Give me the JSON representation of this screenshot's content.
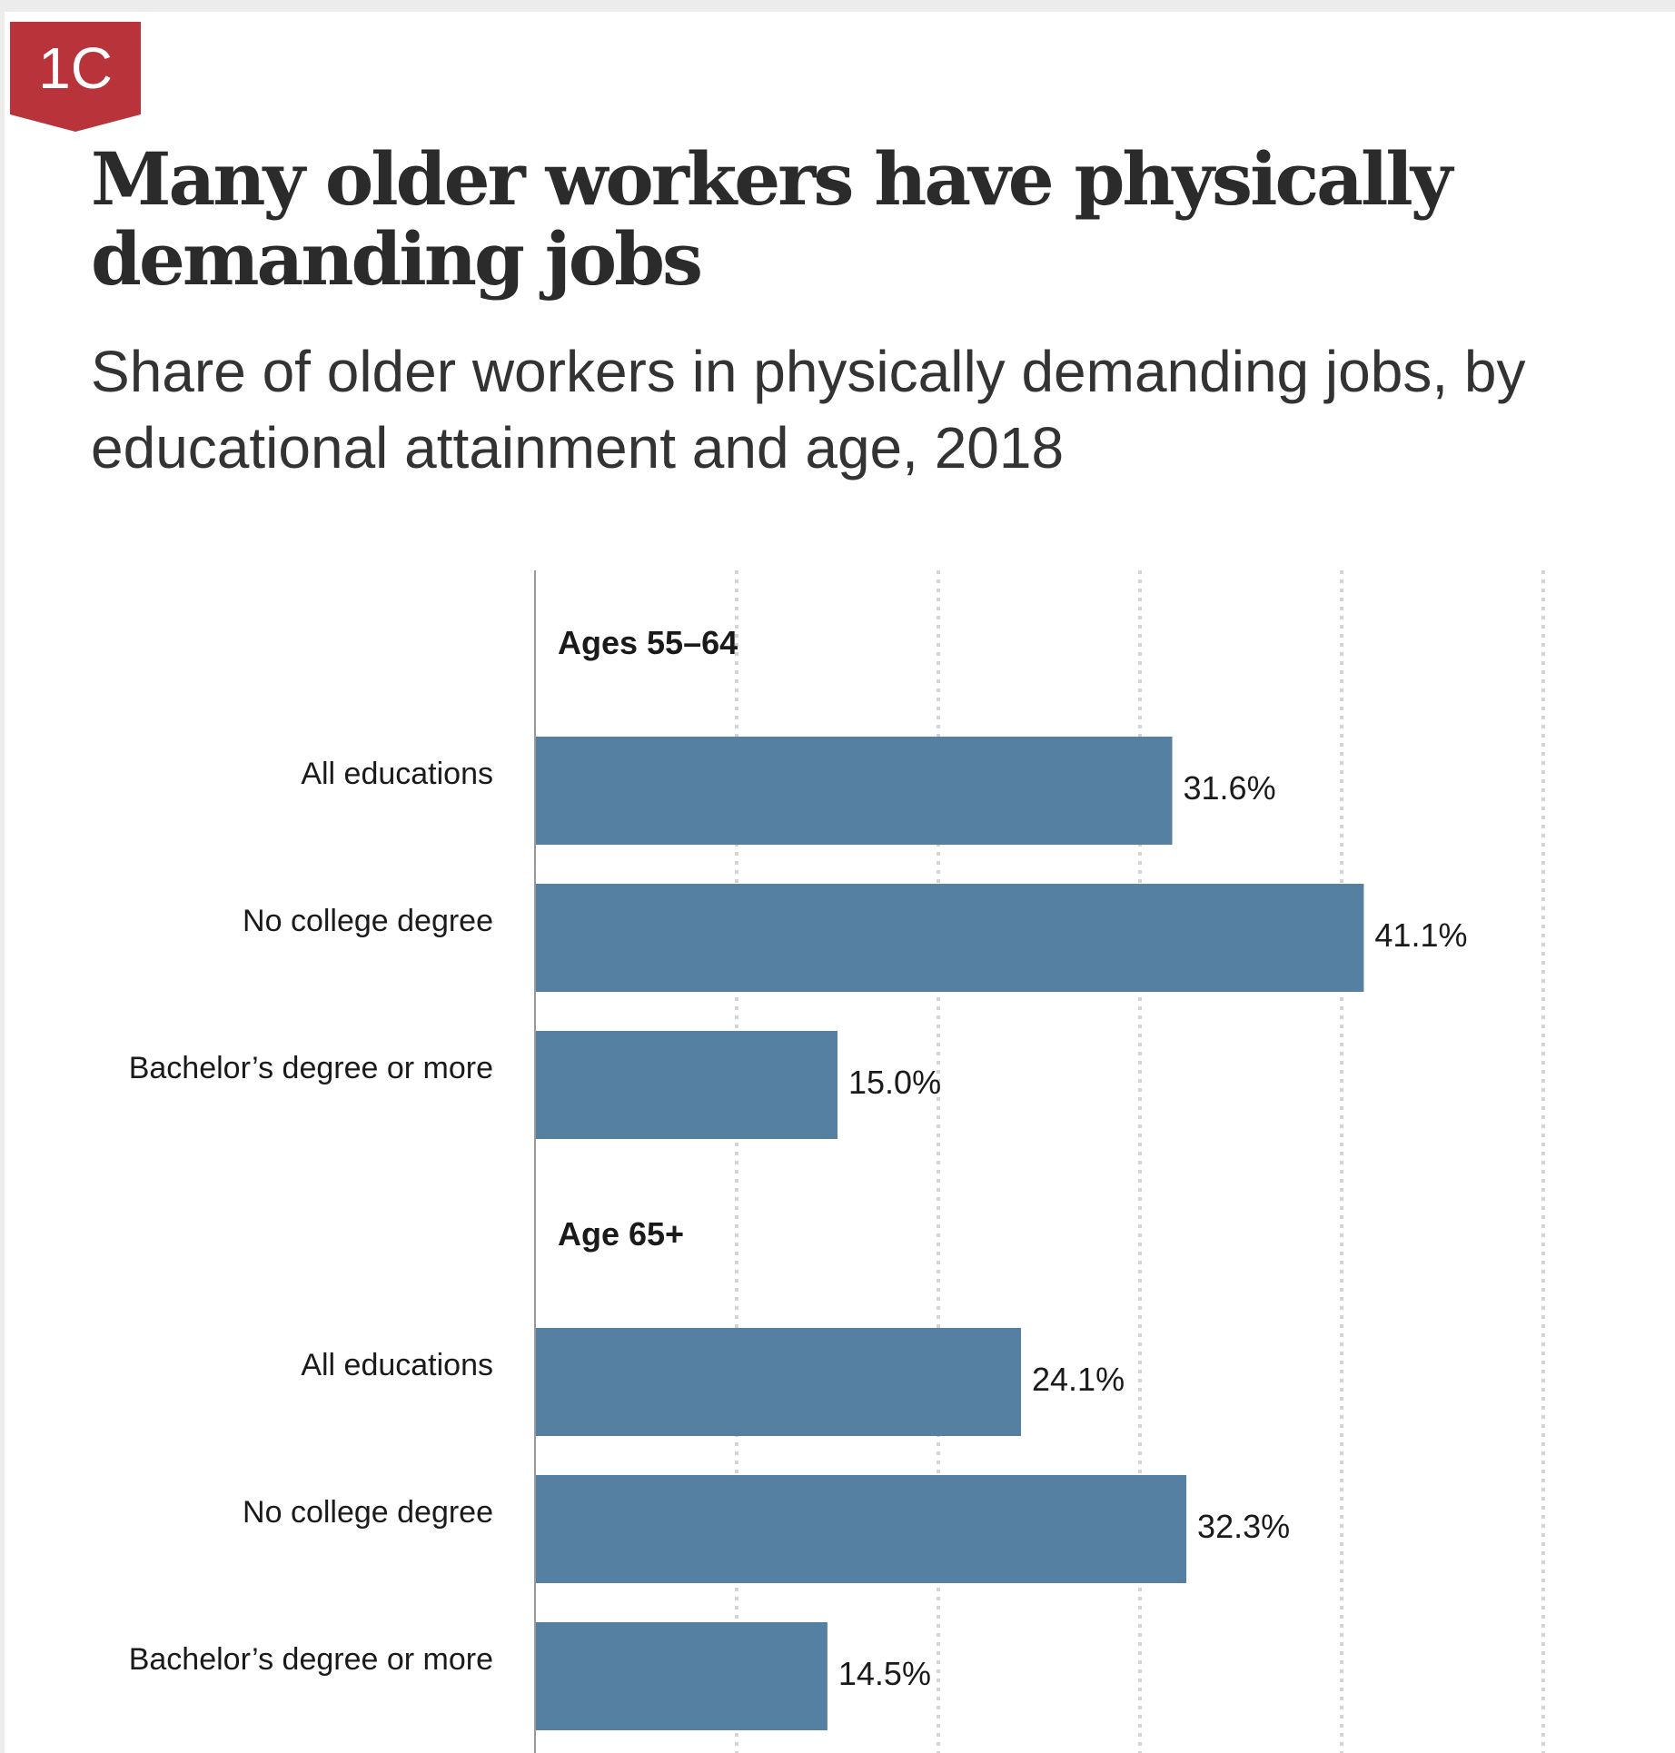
{
  "badge": {
    "label": "1C",
    "color": "#b8333a"
  },
  "title": "Many older workers have physically demanding jobs",
  "subtitle": "Share of older workers in physically demanding jobs, by educational attainment and age, 2018",
  "chart_data": {
    "type": "bar",
    "orientation": "horizontal",
    "title": "Many older workers have physically demanding jobs",
    "subtitle": "Share of older workers in physically demanding jobs, by educational attainment and age, 2018",
    "xlim": [
      0,
      50
    ],
    "gridlines": [
      0,
      10,
      20,
      30,
      40,
      50
    ],
    "grid": true,
    "value_suffix": "%",
    "bar_color": "#5580a2",
    "groups": [
      {
        "name": "Ages 55–64",
        "categories": [
          "All educations",
          "No college degree",
          "Bachelor’s degree or more"
        ],
        "values": [
          31.6,
          41.1,
          15.0
        ],
        "value_labels": [
          "31.6%",
          "41.1%",
          "15.0%"
        ]
      },
      {
        "name": "Age 65+",
        "categories": [
          "All educations",
          "No college degree",
          "Bachelor’s degree or more"
        ],
        "values": [
          24.1,
          32.3,
          14.5
        ],
        "value_labels": [
          "24.1%",
          "32.3%",
          "14.5%"
        ]
      }
    ]
  }
}
